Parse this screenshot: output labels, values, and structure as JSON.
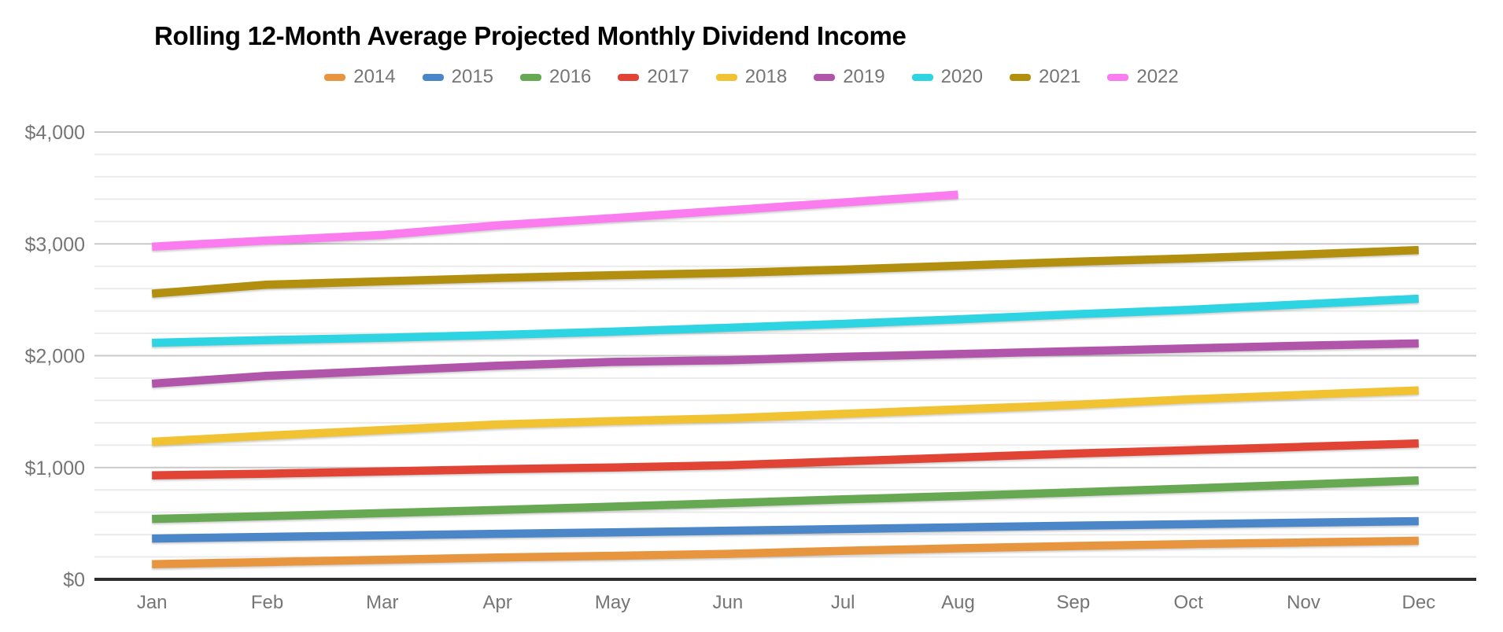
{
  "title": "Rolling 12-Month Average Projected Monthly Dividend Income",
  "colors": {
    "background": "#ffffff",
    "title_text": "#000000",
    "axis_text": "#757575",
    "legend_text": "#757575",
    "major_grid": "#c9c9c9",
    "minor_grid": "#ebebeb",
    "baseline": "#2e2e2e"
  },
  "chart_data": {
    "type": "line",
    "title": "Rolling 12-Month Average Projected Monthly Dividend Income",
    "xlabel": "",
    "ylabel": "",
    "grid": true,
    "legend_position": "top",
    "x": [
      "Jan",
      "Feb",
      "Mar",
      "Apr",
      "May",
      "Jun",
      "Jul",
      "Aug",
      "Sep",
      "Oct",
      "Nov",
      "Dec"
    ],
    "y_axis": {
      "min": 0,
      "max": 4000,
      "major_step": 1000,
      "minor_step": 200,
      "tick_labels": [
        "$0",
        "$1,000",
        "$2,000",
        "$3,000",
        "$4,000"
      ]
    },
    "series": [
      {
        "name": "2014",
        "color": "#E8953F",
        "values": [
          135,
          155,
          175,
          195,
          210,
          228,
          255,
          278,
          298,
          315,
          330,
          345
        ]
      },
      {
        "name": "2015",
        "color": "#4A86C8",
        "values": [
          365,
          380,
          393,
          407,
          420,
          435,
          450,
          465,
          480,
          493,
          507,
          520
        ]
      },
      {
        "name": "2016",
        "color": "#67A853",
        "values": [
          540,
          565,
          592,
          620,
          650,
          682,
          715,
          745,
          778,
          812,
          848,
          885
        ]
      },
      {
        "name": "2017",
        "color": "#E14334",
        "values": [
          930,
          945,
          965,
          985,
          1000,
          1020,
          1055,
          1090,
          1125,
          1155,
          1185,
          1215
        ]
      },
      {
        "name": "2018",
        "color": "#F1C232",
        "values": [
          1230,
          1285,
          1335,
          1385,
          1415,
          1440,
          1480,
          1520,
          1560,
          1610,
          1650,
          1690
        ]
      },
      {
        "name": "2019",
        "color": "#B155AB",
        "values": [
          1750,
          1820,
          1865,
          1910,
          1945,
          1960,
          1990,
          2015,
          2040,
          2065,
          2090,
          2110
        ]
      },
      {
        "name": "2020",
        "color": "#2ED4E2",
        "values": [
          2115,
          2140,
          2160,
          2185,
          2215,
          2250,
          2285,
          2325,
          2370,
          2410,
          2460,
          2510
        ]
      },
      {
        "name": "2021",
        "color": "#B28F0E",
        "values": [
          2555,
          2635,
          2665,
          2695,
          2720,
          2740,
          2770,
          2805,
          2840,
          2870,
          2905,
          2945
        ]
      },
      {
        "name": "2022",
        "color": "#FB7CEF",
        "values": [
          2975,
          3030,
          3080,
          3165,
          3230,
          3300,
          3370,
          3440
        ]
      }
    ]
  }
}
